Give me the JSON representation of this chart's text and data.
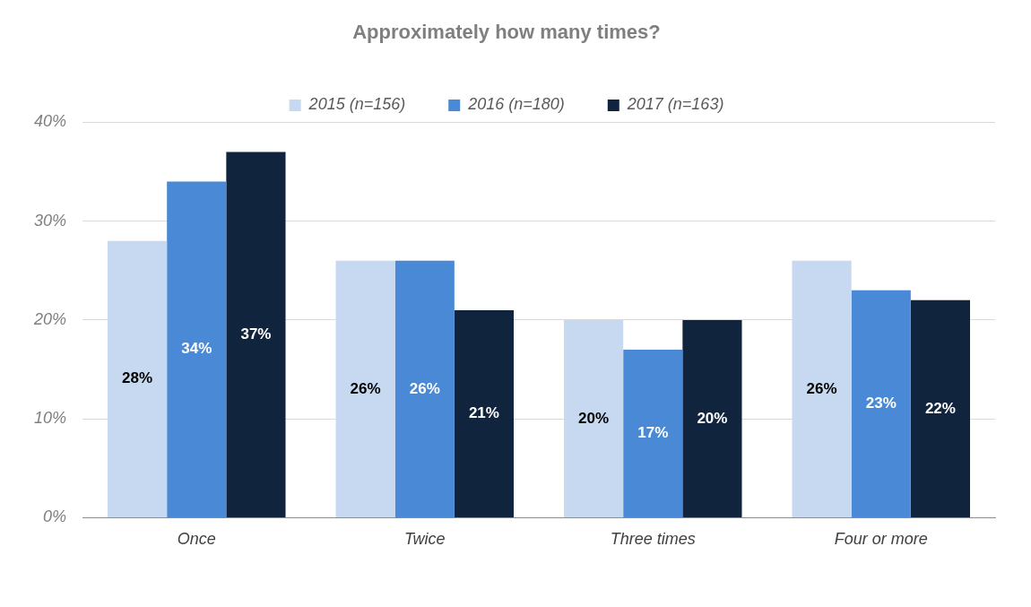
{
  "chart_data": {
    "type": "bar",
    "title": "Approximately how many times?",
    "categories": [
      "Once",
      "Twice",
      "Three times",
      "Four or more"
    ],
    "series": [
      {
        "name": "2015 (n=156)",
        "color": "#c6d9f1",
        "values": [
          28,
          26,
          20,
          26
        ],
        "value_labels": [
          "28%",
          "26%",
          "20%",
          "26%"
        ]
      },
      {
        "name": "2016 (n=180)",
        "color": "#4a89d6",
        "values": [
          34,
          26,
          17,
          23
        ],
        "value_labels": [
          "34%",
          "26%",
          "17%",
          "23%"
        ]
      },
      {
        "name": "2017 (n=163)",
        "color": "#10243e",
        "values": [
          37,
          21,
          20,
          22
        ],
        "value_labels": [
          "37%",
          "21%",
          "20%",
          "22%"
        ]
      }
    ],
    "ylim": [
      0,
      40
    ],
    "yticks": [
      {
        "value": 0,
        "label": "0%"
      },
      {
        "value": 10,
        "label": "10%"
      },
      {
        "value": 20,
        "label": "20%"
      },
      {
        "value": 30,
        "label": "30%"
      },
      {
        "value": 40,
        "label": "40%"
      }
    ],
    "grid": "y",
    "legend": "top"
  }
}
